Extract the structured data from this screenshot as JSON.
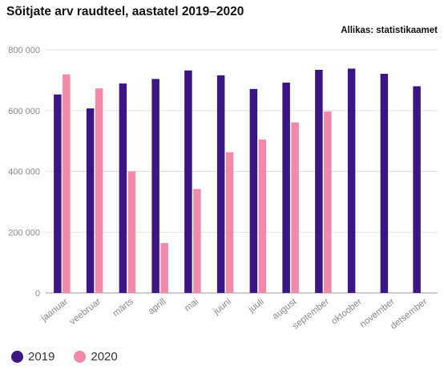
{
  "title": "Sõitjate arv raudteel, aastatel 2019–2020",
  "source": "Allikas: statistikaamet",
  "colors": {
    "series_2019": "#3b1785",
    "series_2020": "#f18aa8",
    "grid": "#e2e2e2",
    "axis_text": "#8a8a8a"
  },
  "chart_data": {
    "type": "bar",
    "title": "Sõitjate arv raudteel, aastatel 2019–2020",
    "xlabel": "",
    "ylabel": "",
    "ylim": [
      0,
      800000
    ],
    "yticks": [
      0,
      200000,
      400000,
      600000,
      800000
    ],
    "ytick_labels": [
      "0",
      "200 000",
      "400 000",
      "600 000",
      "800 000"
    ],
    "grid": true,
    "legend_position": "bottom-left",
    "categories": [
      "jaanuar",
      "veebruar",
      "märts",
      "aprill",
      "mai",
      "juuni",
      "juuli",
      "august",
      "september",
      "oktoober",
      "november",
      "detsember"
    ],
    "series": [
      {
        "name": "2019",
        "values": [
          653000,
          607000,
          689000,
          704000,
          732000,
          716000,
          671000,
          692000,
          734000,
          738000,
          721000,
          680000
        ]
      },
      {
        "name": "2020",
        "values": [
          719000,
          673000,
          400000,
          164000,
          342000,
          463000,
          505000,
          561000,
          597000,
          null,
          null,
          null
        ]
      }
    ]
  }
}
